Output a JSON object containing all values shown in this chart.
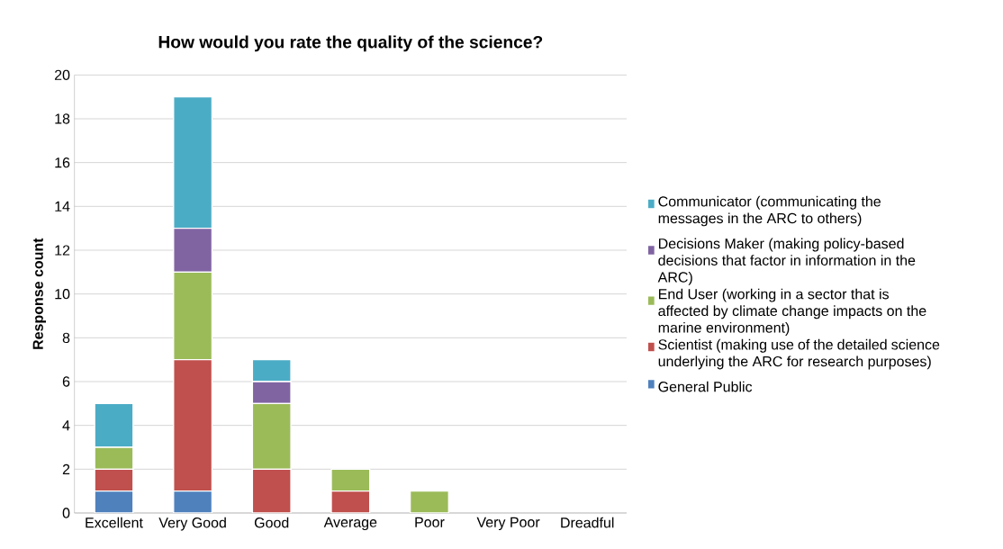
{
  "chart_data": {
    "type": "bar",
    "stacked": true,
    "title": "How would you rate the quality of the science?",
    "ylabel": "Response count",
    "categories": [
      "Excellent",
      "Very Good",
      "Good",
      "Average",
      "Poor",
      "Very Poor",
      "Dreadful"
    ],
    "series": [
      {
        "name": "General Public",
        "color": "#4f81bd",
        "values": [
          1,
          1,
          0,
          0,
          0,
          0,
          0
        ]
      },
      {
        "name": "Scientist (making use of the detailed science underlying the ARC for research purposes)",
        "color": "#c0504d",
        "values": [
          1,
          6,
          2,
          1,
          0,
          0,
          0
        ]
      },
      {
        "name": "End User (working in a sector that is affected by climate change impacts on the marine environment)",
        "color": "#9bbb59",
        "values": [
          1,
          4,
          3,
          1,
          1,
          0,
          0
        ]
      },
      {
        "name": "Decisions Maker (making policy-based decisions that factor in information in the ARC)",
        "color": "#8064a2",
        "values": [
          0,
          2,
          1,
          0,
          0,
          0,
          0
        ]
      },
      {
        "name": "Communicator (communicating the messages in the ARC to others)",
        "color": "#4bacc6",
        "values": [
          2,
          6,
          1,
          0,
          0,
          0,
          0
        ]
      }
    ],
    "ylim": [
      0,
      20
    ],
    "yticks": [
      0,
      2,
      4,
      6,
      8,
      10,
      12,
      14,
      16,
      18,
      20
    ],
    "grid": "y",
    "legend": "right"
  }
}
